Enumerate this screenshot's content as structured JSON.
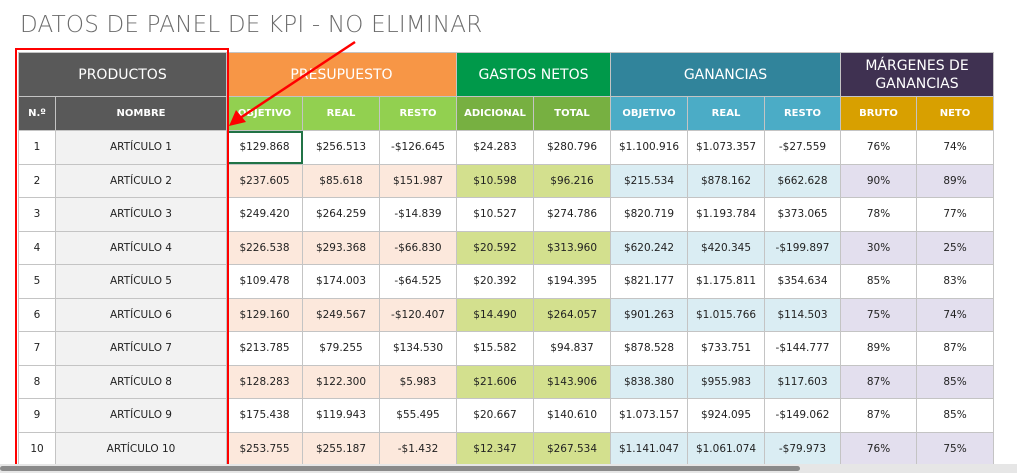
{
  "title": "DATOS DE PANEL DE KPI - NO ELIMINAR",
  "groups": [
    "PRODUCTOS",
    "PRESUPUESTO",
    "GASTOS NETOS",
    "GANANCIAS",
    "MÁRGENES DE GANANCIAS"
  ],
  "columns": [
    "N.º",
    "NOMBRE",
    "OBJETIVO",
    "REAL",
    "RESTO",
    "ADICIONAL",
    "TOTAL",
    "OBJETIVO",
    "REAL",
    "RESTO",
    "BRUTO",
    "NETO"
  ],
  "rows": [
    [
      "1",
      "ARTÍCULO 1",
      "$129.868",
      "$256.513",
      "-$126.645",
      "$24.283",
      "$280.796",
      "$1.100.916",
      "$1.073.357",
      "-$27.559",
      "76%",
      "74%"
    ],
    [
      "2",
      "ARTÍCULO 2",
      "$237.605",
      "$85.618",
      "$151.987",
      "$10.598",
      "$96.216",
      "$215.534",
      "$878.162",
      "$662.628",
      "90%",
      "89%"
    ],
    [
      "3",
      "ARTÍCULO 3",
      "$249.420",
      "$264.259",
      "-$14.839",
      "$10.527",
      "$274.786",
      "$820.719",
      "$1.193.784",
      "$373.065",
      "78%",
      "77%"
    ],
    [
      "4",
      "ARTÍCULO 4",
      "$226.538",
      "$293.368",
      "-$66.830",
      "$20.592",
      "$313.960",
      "$620.242",
      "$420.345",
      "-$199.897",
      "30%",
      "25%"
    ],
    [
      "5",
      "ARTÍCULO 5",
      "$109.478",
      "$174.003",
      "-$64.525",
      "$20.392",
      "$194.395",
      "$821.177",
      "$1.175.811",
      "$354.634",
      "85%",
      "83%"
    ],
    [
      "6",
      "ARTÍCULO 6",
      "$129.160",
      "$249.567",
      "-$120.407",
      "$14.490",
      "$264.057",
      "$901.263",
      "$1.015.766",
      "$114.503",
      "75%",
      "74%"
    ],
    [
      "7",
      "ARTÍCULO 7",
      "$213.785",
      "$79.255",
      "$134.530",
      "$15.582",
      "$94.837",
      "$878.528",
      "$733.751",
      "-$144.777",
      "89%",
      "87%"
    ],
    [
      "8",
      "ARTÍCULO 8",
      "$128.283",
      "$122.300",
      "$5.983",
      "$21.606",
      "$143.906",
      "$838.380",
      "$955.983",
      "$117.603",
      "87%",
      "85%"
    ],
    [
      "9",
      "ARTÍCULO 9",
      "$175.438",
      "$119.943",
      "$55.495",
      "$20.667",
      "$140.610",
      "$1.073.157",
      "$924.095",
      "-$149.062",
      "87%",
      "85%"
    ],
    [
      "10",
      "ARTÍCULO 10",
      "$253.755",
      "$255.187",
      "-$1.432",
      "$12.347",
      "$267.534",
      "$1.141.047",
      "$1.061.074",
      "-$79.973",
      "76%",
      "75%"
    ]
  ],
  "colors": {
    "productos": "#595959",
    "presupuesto": "#f79646",
    "gastos": "#00994a",
    "ganancias": "#31849b",
    "margenes": "#3f3151",
    "annotation": "#ff0000"
  }
}
